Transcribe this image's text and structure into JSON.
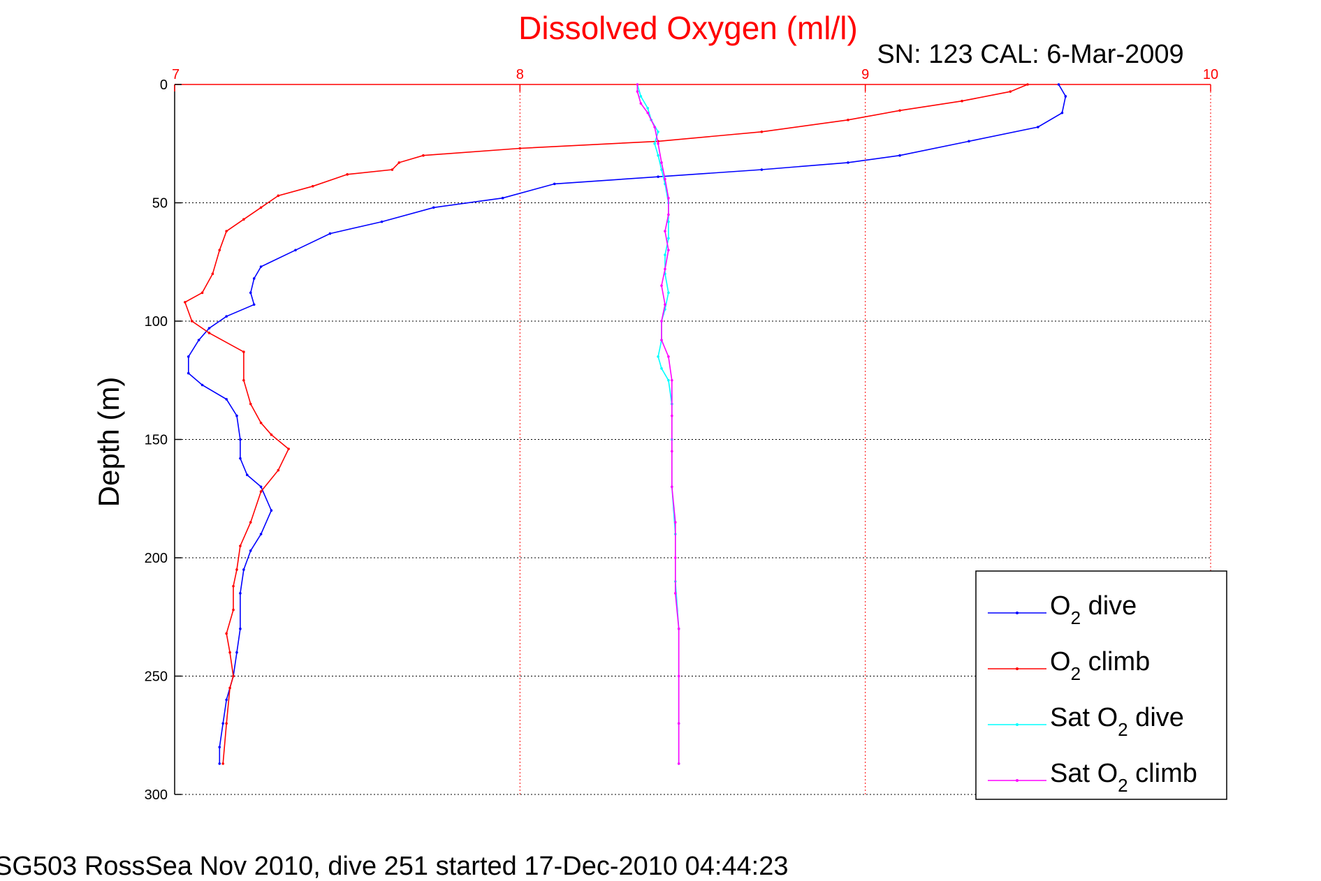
{
  "chart_data": {
    "type": "line",
    "title": "Dissolved Oxygen (ml/l)",
    "subtitle": "SN: 123  CAL: 6-Mar-2009",
    "footer": "SG503 RossSea Nov 2010, dive 251 started 17-Dec-2010 04:44:23",
    "xlabel": "",
    "ylabel": "Depth (m)",
    "x_axis_position": "top",
    "y_reversed": true,
    "xlim": [
      7,
      10
    ],
    "ylim": [
      0,
      300
    ],
    "xticks": [
      "7",
      "8",
      "9",
      "10"
    ],
    "yticks": [
      "0",
      "50",
      "100",
      "150",
      "200",
      "250",
      "300"
    ],
    "grid": true,
    "legend_position": "bottom-right",
    "legend": [
      {
        "main": "O",
        "sub": "2",
        "rest": " dive"
      },
      {
        "main": "O",
        "sub": "2",
        "rest": " climb"
      },
      {
        "main": "Sat O",
        "sub": "2",
        "rest": " dive"
      },
      {
        "main": "Sat O",
        "sub": "2",
        "rest": " climb"
      }
    ],
    "colors": {
      "title": "#ff0000",
      "x_axis": "#ff0000",
      "o2_dive": "#0000ff",
      "o2_climb": "#ff0000",
      "sat_dive": "#00ffff",
      "sat_climb": "#ff00ff"
    },
    "series": [
      {
        "key": "o2_dive",
        "points": [
          [
            9.56,
            0
          ],
          [
            9.58,
            5
          ],
          [
            9.57,
            12
          ],
          [
            9.5,
            18
          ],
          [
            9.3,
            24
          ],
          [
            9.1,
            30
          ],
          [
            8.95,
            33
          ],
          [
            8.7,
            36
          ],
          [
            8.4,
            39
          ],
          [
            8.1,
            42
          ],
          [
            7.95,
            48
          ],
          [
            7.75,
            52
          ],
          [
            7.6,
            58
          ],
          [
            7.45,
            63
          ],
          [
            7.35,
            70
          ],
          [
            7.25,
            77
          ],
          [
            7.23,
            82
          ],
          [
            7.22,
            88
          ],
          [
            7.23,
            93
          ],
          [
            7.15,
            98
          ],
          [
            7.1,
            103
          ],
          [
            7.07,
            108
          ],
          [
            7.04,
            115
          ],
          [
            7.04,
            122
          ],
          [
            7.08,
            127
          ],
          [
            7.15,
            133
          ],
          [
            7.18,
            140
          ],
          [
            7.19,
            150
          ],
          [
            7.19,
            158
          ],
          [
            7.21,
            165
          ],
          [
            7.25,
            170
          ],
          [
            7.28,
            180
          ],
          [
            7.25,
            190
          ],
          [
            7.22,
            197
          ],
          [
            7.2,
            205
          ],
          [
            7.19,
            215
          ],
          [
            7.19,
            230
          ],
          [
            7.18,
            240
          ],
          [
            7.17,
            250
          ],
          [
            7.15,
            260
          ],
          [
            7.14,
            270
          ],
          [
            7.13,
            280
          ],
          [
            7.13,
            287
          ]
        ]
      },
      {
        "key": "o2_climb",
        "points": [
          [
            7.14,
            287
          ],
          [
            7.15,
            270
          ],
          [
            7.16,
            255
          ],
          [
            7.17,
            250
          ],
          [
            7.16,
            240
          ],
          [
            7.15,
            232
          ],
          [
            7.17,
            222
          ],
          [
            7.17,
            212
          ],
          [
            7.18,
            205
          ],
          [
            7.19,
            195
          ],
          [
            7.22,
            185
          ],
          [
            7.25,
            172
          ],
          [
            7.3,
            163
          ],
          [
            7.33,
            154
          ],
          [
            7.28,
            148
          ],
          [
            7.25,
            143
          ],
          [
            7.22,
            135
          ],
          [
            7.2,
            125
          ],
          [
            7.2,
            113
          ],
          [
            7.1,
            105
          ],
          [
            7.05,
            100
          ],
          [
            7.03,
            92
          ],
          [
            7.08,
            88
          ],
          [
            7.11,
            80
          ],
          [
            7.13,
            70
          ],
          [
            7.15,
            62
          ],
          [
            7.2,
            57
          ],
          [
            7.25,
            52
          ],
          [
            7.3,
            47
          ],
          [
            7.4,
            43
          ],
          [
            7.5,
            38
          ],
          [
            7.63,
            36
          ],
          [
            7.65,
            33
          ],
          [
            7.72,
            30
          ],
          [
            8.0,
            27
          ],
          [
            8.4,
            24
          ],
          [
            8.7,
            20
          ],
          [
            8.95,
            15
          ],
          [
            9.1,
            11
          ],
          [
            9.28,
            7
          ],
          [
            9.42,
            3
          ],
          [
            9.47,
            0
          ]
        ]
      },
      {
        "key": "sat_dive",
        "points": [
          [
            8.34,
            0
          ],
          [
            8.35,
            5
          ],
          [
            8.37,
            10
          ],
          [
            8.38,
            15
          ],
          [
            8.4,
            20
          ],
          [
            8.39,
            25
          ],
          [
            8.4,
            30
          ],
          [
            8.41,
            36
          ],
          [
            8.42,
            42
          ],
          [
            8.43,
            50
          ],
          [
            8.43,
            58
          ],
          [
            8.43,
            65
          ],
          [
            8.42,
            72
          ],
          [
            8.42,
            80
          ],
          [
            8.43,
            88
          ],
          [
            8.42,
            95
          ],
          [
            8.41,
            100
          ],
          [
            8.41,
            108
          ],
          [
            8.4,
            115
          ],
          [
            8.41,
            120
          ],
          [
            8.43,
            125
          ],
          [
            8.44,
            135
          ],
          [
            8.44,
            150
          ],
          [
            8.44,
            170
          ],
          [
            8.45,
            190
          ],
          [
            8.45,
            210
          ],
          [
            8.46,
            230
          ],
          [
            8.46,
            250
          ],
          [
            8.46,
            270
          ],
          [
            8.46,
            287
          ]
        ]
      },
      {
        "key": "sat_climb",
        "points": [
          [
            8.46,
            287
          ],
          [
            8.46,
            270
          ],
          [
            8.46,
            250
          ],
          [
            8.46,
            230
          ],
          [
            8.45,
            215
          ],
          [
            8.45,
            200
          ],
          [
            8.45,
            185
          ],
          [
            8.44,
            170
          ],
          [
            8.44,
            155
          ],
          [
            8.44,
            140
          ],
          [
            8.44,
            125
          ],
          [
            8.43,
            115
          ],
          [
            8.41,
            108
          ],
          [
            8.41,
            100
          ],
          [
            8.42,
            93
          ],
          [
            8.41,
            85
          ],
          [
            8.42,
            78
          ],
          [
            8.43,
            70
          ],
          [
            8.42,
            62
          ],
          [
            8.43,
            55
          ],
          [
            8.43,
            48
          ],
          [
            8.42,
            40
          ],
          [
            8.41,
            33
          ],
          [
            8.4,
            25
          ],
          [
            8.39,
            18
          ],
          [
            8.37,
            12
          ],
          [
            8.35,
            8
          ],
          [
            8.34,
            3
          ],
          [
            8.34,
            0
          ]
        ]
      }
    ]
  }
}
